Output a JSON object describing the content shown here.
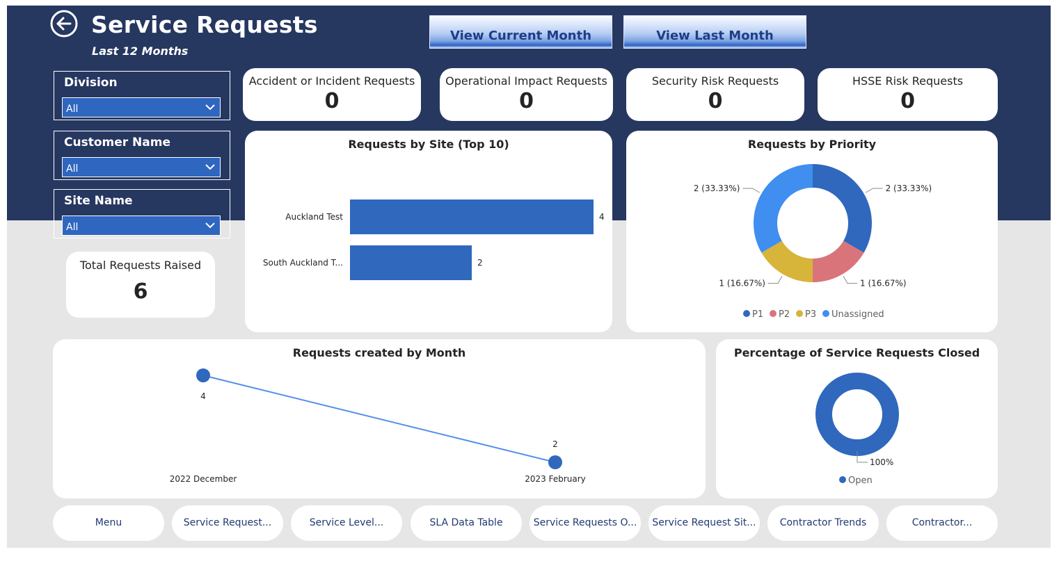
{
  "header": {
    "title": "Service Requests",
    "subtitle": "Last 12 Months"
  },
  "nav_buttons": {
    "current_month": "View Current Month",
    "last_month": "View Last Month"
  },
  "slicers": [
    {
      "label": "Division",
      "value": "All"
    },
    {
      "label": "Customer Name",
      "value": "All"
    },
    {
      "label": "Site Name",
      "value": "All"
    }
  ],
  "kpis": [
    {
      "label": "Accident or Incident Requests",
      "value": "0"
    },
    {
      "label": "Operational Impact Requests",
      "value": "0"
    },
    {
      "label": "Security Risk Requests",
      "value": "0"
    },
    {
      "label": "HSSE Risk Requests",
      "value": "0"
    }
  ],
  "total_requests": {
    "label": "Total Requests Raised",
    "value": "6"
  },
  "colors": {
    "banner": "#263760",
    "bar": "#2f68bd",
    "p1": "#2f68bd",
    "p2": "#d9757a",
    "p3": "#d7b43a",
    "unassigned": "#3f8ef0",
    "line": "#4f8fe8"
  },
  "chart_data": [
    {
      "type": "bar",
      "title": "Requests by Site (Top 10)",
      "categories": [
        "Auckland Test",
        "South Auckland T..."
      ],
      "values": [
        4,
        2
      ],
      "xlim": [
        0,
        4
      ]
    },
    {
      "type": "pie",
      "title": "Requests by Priority",
      "categories": [
        "P1",
        "P2",
        "P3",
        "Unassigned"
      ],
      "values": [
        2,
        1,
        1,
        2
      ],
      "data_labels": [
        "2 (33.33%)",
        "1 (16.67%)",
        "1 (16.67%)",
        "2 (33.33%)"
      ],
      "legend": "bottom"
    },
    {
      "type": "line",
      "title": "Requests created by Month",
      "x": [
        "2022 December",
        "2023 February"
      ],
      "values": [
        4,
        2
      ],
      "data_labels": [
        "4",
        "2"
      ]
    },
    {
      "type": "pie",
      "title": "Percentage of Service Requests Closed",
      "categories": [
        "Open"
      ],
      "values": [
        100
      ],
      "data_labels": [
        "100%"
      ],
      "legend": "bottom"
    }
  ],
  "page_tabs": [
    "Menu",
    "Service Request...",
    "Service Level...",
    "SLA Data Table",
    "Service Requests O...",
    "Service Request Sit...",
    "Contractor Trends",
    "Contractor..."
  ]
}
